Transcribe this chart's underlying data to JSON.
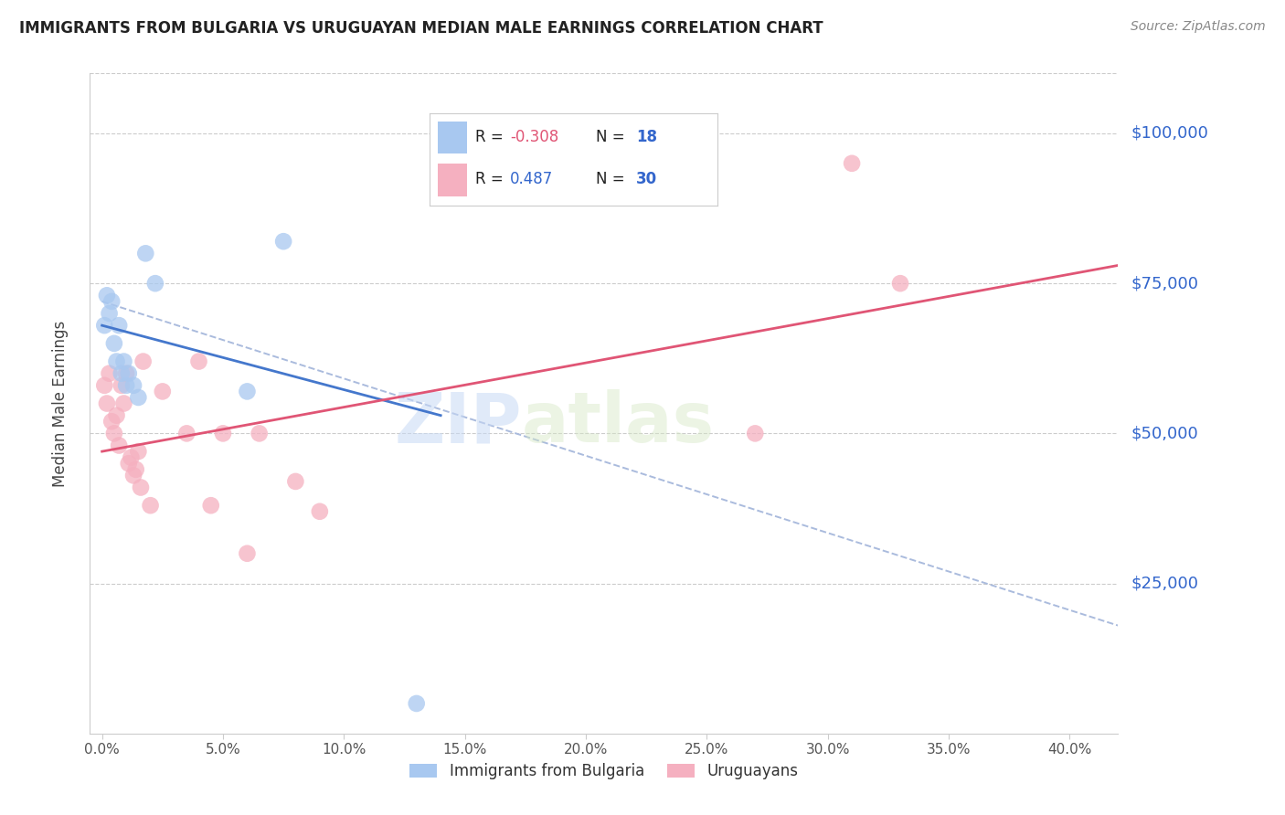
{
  "title": "IMMIGRANTS FROM BULGARIA VS URUGUAYAN MEDIAN MALE EARNINGS CORRELATION CHART",
  "source": "Source: ZipAtlas.com",
  "ylabel": "Median Male Earnings",
  "xlabel_ticks": [
    "0.0%",
    "5.0%",
    "10.0%",
    "15.0%",
    "20.0%",
    "25.0%",
    "30.0%",
    "35.0%",
    "40.0%"
  ],
  "xlabel_vals": [
    0.0,
    0.05,
    0.1,
    0.15,
    0.2,
    0.25,
    0.3,
    0.35,
    0.4
  ],
  "ytick_labels": [
    "$25,000",
    "$50,000",
    "$75,000",
    "$100,000"
  ],
  "ytick_vals": [
    25000,
    50000,
    75000,
    100000
  ],
  "ylim": [
    0,
    110000
  ],
  "xlim": [
    -0.005,
    0.42
  ],
  "watermark_zip": "ZIP",
  "watermark_atlas": "atlas",
  "legend_blue_r": "-0.308",
  "legend_blue_n": "18",
  "legend_pink_r": "0.487",
  "legend_pink_n": "30",
  "blue_color": "#a8c8f0",
  "pink_color": "#f5b0c0",
  "blue_line_color": "#4477cc",
  "pink_line_color": "#e05575",
  "dashed_line_color": "#aabbdd",
  "blue_x": [
    0.001,
    0.002,
    0.003,
    0.004,
    0.005,
    0.006,
    0.007,
    0.008,
    0.009,
    0.01,
    0.011,
    0.013,
    0.015,
    0.018,
    0.022,
    0.06,
    0.075,
    0.13
  ],
  "blue_y": [
    68000,
    73000,
    70000,
    72000,
    65000,
    62000,
    68000,
    60000,
    62000,
    58000,
    60000,
    58000,
    56000,
    80000,
    75000,
    57000,
    82000,
    5000
  ],
  "pink_x": [
    0.001,
    0.002,
    0.003,
    0.004,
    0.005,
    0.006,
    0.007,
    0.008,
    0.009,
    0.01,
    0.011,
    0.012,
    0.013,
    0.014,
    0.015,
    0.016,
    0.017,
    0.02,
    0.025,
    0.035,
    0.04,
    0.045,
    0.05,
    0.06,
    0.065,
    0.08,
    0.09,
    0.27,
    0.31,
    0.33
  ],
  "pink_y": [
    58000,
    55000,
    60000,
    52000,
    50000,
    53000,
    48000,
    58000,
    55000,
    60000,
    45000,
    46000,
    43000,
    44000,
    47000,
    41000,
    62000,
    38000,
    57000,
    50000,
    62000,
    38000,
    50000,
    30000,
    50000,
    42000,
    37000,
    50000,
    95000,
    75000
  ],
  "blue_trend_x": [
    0.0,
    0.14
  ],
  "blue_trend_y": [
    68000,
    53000
  ],
  "pink_trend_x": [
    0.0,
    0.42
  ],
  "pink_trend_y": [
    47000,
    78000
  ],
  "dashed_trend_x": [
    0.0,
    0.42
  ],
  "dashed_trend_y": [
    72000,
    18000
  ]
}
